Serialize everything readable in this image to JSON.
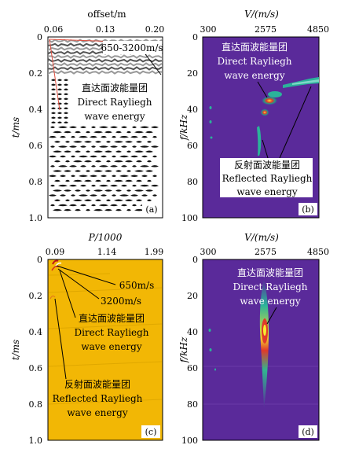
{
  "panels": {
    "a": {
      "tag": "(a)",
      "top_axis_title": "offset/m",
      "x_ticks": [
        "0.06",
        "0.13",
        "0.20"
      ],
      "y_axis_title": "t/ms",
      "y_ticks": [
        "0",
        "0.2",
        "0.4",
        "0.6",
        "0.8",
        "1.0"
      ],
      "velocity_label": "650-3200m/s",
      "annotation_cn": "直达面波能量团",
      "annotation_en_1": "Direct Rayliegh",
      "annotation_en_2": "wave energy"
    },
    "b": {
      "tag": "(b)",
      "top_axis_title": "V/(m/s)",
      "x_ticks": [
        "300",
        "2575",
        "4850"
      ],
      "y_axis_title": "f/kHz",
      "y_ticks": [
        "0",
        "20",
        "40",
        "60",
        "80",
        "100"
      ],
      "annotation1_cn": "直达面波能量团",
      "annotation1_en_1": "Direct Rayliegh",
      "annotation1_en_2": "wave energy",
      "annotation2_cn": "反射面波能量团",
      "annotation2_en_1": "Reflected Rayliegh",
      "annotation2_en_2": "wave energy"
    },
    "c": {
      "tag": "(c)",
      "top_axis_title": "P/1000",
      "x_ticks": [
        "0.09",
        "1.14",
        "1.99"
      ],
      "y_axis_title": "t/ms",
      "y_ticks": [
        "0",
        "0.2",
        "0.4",
        "0.6",
        "0.8",
        "1.0"
      ],
      "velocity_label_1": "650m/s",
      "velocity_label_2": "3200m/s",
      "annotation1_cn": "直达面波能量团",
      "annotation1_en_1": "Direct Rayliegh",
      "annotation1_en_2": "wave energy",
      "annotation2_cn": "反射面波能量团",
      "annotation2_en_1": "Reflected Rayliegh",
      "annotation2_en_2": "wave energy"
    },
    "d": {
      "tag": "(d)",
      "top_axis_title": "V/(m/s)",
      "x_ticks": [
        "300",
        "2575",
        "4850"
      ],
      "y_axis_title": "f/kHz",
      "y_ticks": [
        "0",
        "20",
        "40",
        "60",
        "80",
        "100"
      ],
      "annotation_cn": "直达面波能量团",
      "annotation_en_1": "Direct Rayliegh",
      "annotation_en_2": "wave energy"
    }
  },
  "colors": {
    "spectrum_bg": "#5a2a9a",
    "tau_p_bg": "#f2b705",
    "energy_core": "#f5e52a",
    "energy_hot": "#e02a2a",
    "energy_mid": "#2aa08a"
  }
}
